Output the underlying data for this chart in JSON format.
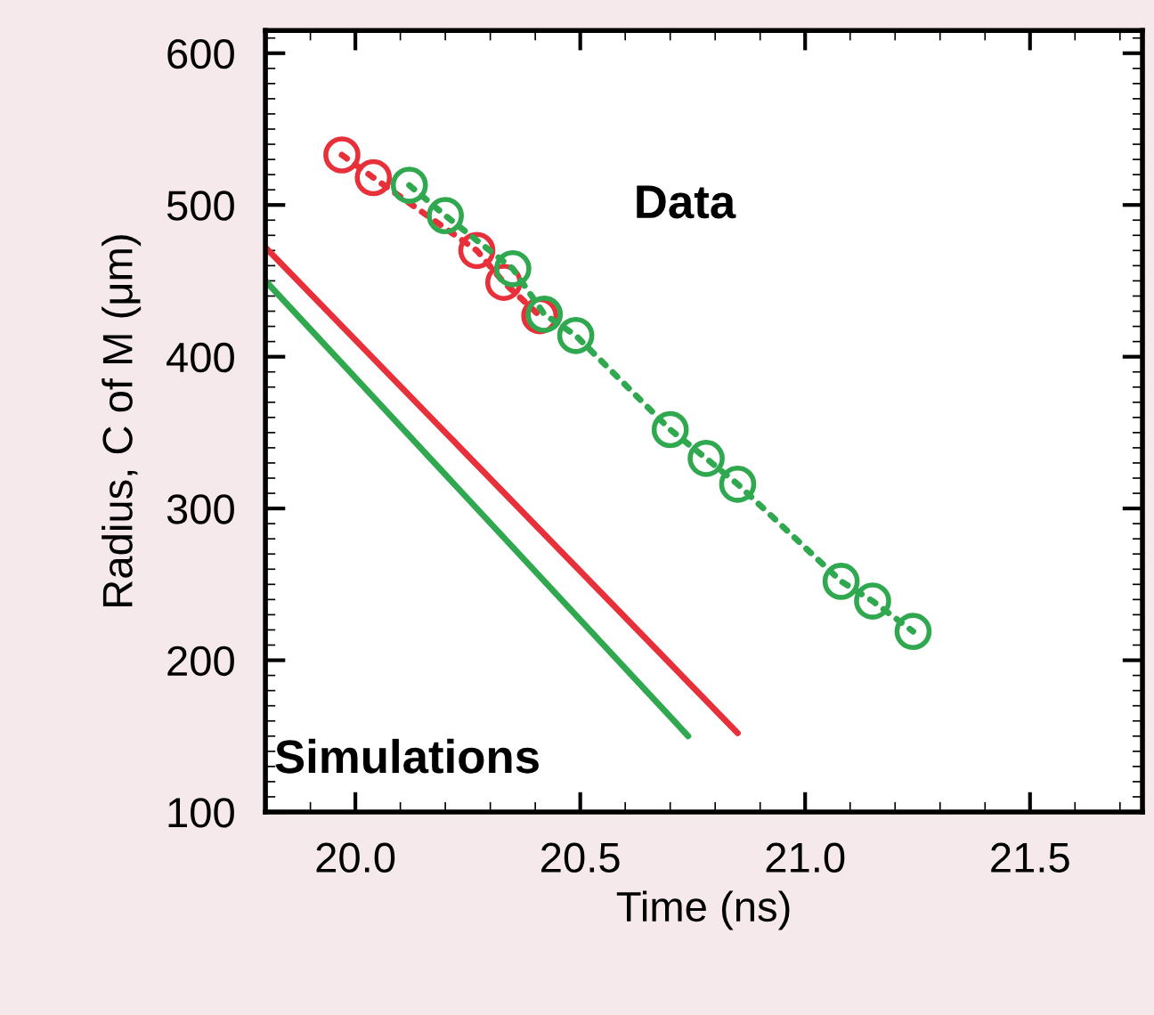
{
  "chart_data": {
    "type": "line",
    "xlabel": "Time (ns)",
    "ylabel": "Radius, C of M (μm)",
    "xlim": [
      19.8,
      21.75
    ],
    "ylim": [
      100,
      615
    ],
    "xticks": [
      {
        "value": 20.0,
        "label": "20.0"
      },
      20.5,
      {
        "value": 21.0,
        "label": "21.0"
      },
      21.5
    ],
    "yticks": [
      100,
      200,
      300,
      400,
      500,
      600
    ],
    "grid": false,
    "legend": false,
    "series": [
      {
        "color": "#e8303a",
        "marker": "circle",
        "line_style": "dotted",
        "x": [
          19.97,
          20.04,
          20.27,
          20.33,
          20.41
        ],
        "values": [
          533,
          518,
          470,
          449,
          427
        ]
      },
      {
        "color": "#2fa84f",
        "marker": "circle",
        "line_style": "dotted",
        "x": [
          20.12,
          20.2,
          20.35,
          20.42,
          20.49,
          20.7,
          20.78,
          20.85,
          21.08,
          21.15,
          21.24
        ],
        "values": [
          513,
          493,
          458,
          428,
          414,
          352,
          333,
          316,
          252,
          239,
          219
        ]
      },
      {
        "color": "#e8303a",
        "marker": "none",
        "line_style": "solid",
        "x": [
          19.8,
          20.85
        ],
        "values": [
          472,
          152
        ]
      },
      {
        "color": "#2fa84f",
        "marker": "none",
        "line_style": "solid",
        "x": [
          19.8,
          20.74
        ],
        "values": [
          450,
          150
        ]
      }
    ],
    "annotations": [
      "Data",
      "Simulations"
    ]
  }
}
